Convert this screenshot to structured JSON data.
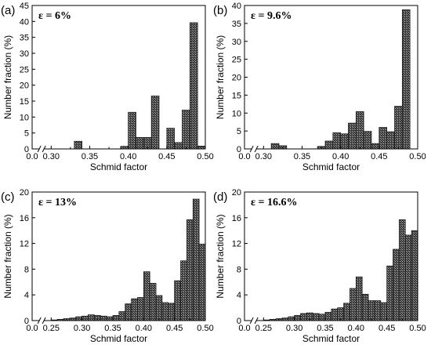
{
  "chart_data": [
    {
      "type": "bar",
      "panel_label": "(a)",
      "annotation": "ε = 6%",
      "xlabel": "Schmid factor",
      "ylabel": "Number fraction (%)",
      "xlim": [
        0.0,
        0.5
      ],
      "ylim": [
        0,
        45
      ],
      "axis_break": "0.0–0.30",
      "xticks": [
        "0.0",
        "0.30",
        "0.35",
        "0.40",
        "0.45",
        "0.50"
      ],
      "yticks": [
        "0",
        "5",
        "10",
        "15",
        "20",
        "25",
        "30",
        "35",
        "40",
        "45"
      ],
      "bin_width": 0.01,
      "bins": [
        {
          "x": 0.335,
          "y": 2.4
        },
        {
          "x": 0.395,
          "y": 0.8
        },
        {
          "x": 0.405,
          "y": 11.5
        },
        {
          "x": 0.415,
          "y": 3.6
        },
        {
          "x": 0.425,
          "y": 3.6
        },
        {
          "x": 0.435,
          "y": 16.6
        },
        {
          "x": 0.455,
          "y": 6.5
        },
        {
          "x": 0.465,
          "y": 2.0
        },
        {
          "x": 0.475,
          "y": 12.2
        },
        {
          "x": 0.485,
          "y": 39.6
        },
        {
          "x": 0.495,
          "y": 0.9
        }
      ]
    },
    {
      "type": "bar",
      "panel_label": "(b)",
      "annotation": "ε = 9.6%",
      "xlabel": "Schmid factor",
      "ylabel": "Number fraction (%)",
      "xlim": [
        0.0,
        0.5
      ],
      "ylim": [
        0,
        40
      ],
      "axis_break": "0.0–0.30",
      "xticks": [
        "0.0",
        "0.30",
        "0.35",
        "0.40",
        "0.45",
        "0.50"
      ],
      "yticks": [
        "0",
        "5",
        "10",
        "15",
        "20",
        "25",
        "30",
        "35",
        "40"
      ],
      "bin_width": 0.01,
      "bins": [
        {
          "x": 0.315,
          "y": 1.5
        },
        {
          "x": 0.325,
          "y": 0.9
        },
        {
          "x": 0.375,
          "y": 0.7
        },
        {
          "x": 0.385,
          "y": 2.2
        },
        {
          "x": 0.395,
          "y": 4.5
        },
        {
          "x": 0.405,
          "y": 4.2
        },
        {
          "x": 0.415,
          "y": 7.2
        },
        {
          "x": 0.425,
          "y": 10.4
        },
        {
          "x": 0.435,
          "y": 4.9
        },
        {
          "x": 0.445,
          "y": 1.5
        },
        {
          "x": 0.455,
          "y": 6.0
        },
        {
          "x": 0.465,
          "y": 4.8
        },
        {
          "x": 0.475,
          "y": 11.9
        },
        {
          "x": 0.485,
          "y": 38.8
        }
      ]
    },
    {
      "type": "bar",
      "panel_label": "(c)",
      "annotation": "ε = 13%",
      "xlabel": "Schmid factor",
      "ylabel": "Number fraction (%)",
      "xlim": [
        0.0,
        0.5
      ],
      "ylim": [
        0,
        20
      ],
      "axis_break": "0.0–0.25",
      "xticks": [
        "0.0",
        "0.25",
        "0.30",
        "0.35",
        "0.40",
        "0.45",
        "0.50"
      ],
      "yticks": [
        "0",
        "4",
        "8",
        "12",
        "16",
        "20"
      ],
      "bin_width": 0.01,
      "bins": [
        {
          "x": 0.255,
          "y": 0.1
        },
        {
          "x": 0.265,
          "y": 0.2
        },
        {
          "x": 0.275,
          "y": 0.3
        },
        {
          "x": 0.285,
          "y": 0.4
        },
        {
          "x": 0.295,
          "y": 0.6
        },
        {
          "x": 0.305,
          "y": 0.7
        },
        {
          "x": 0.315,
          "y": 0.9
        },
        {
          "x": 0.325,
          "y": 0.8
        },
        {
          "x": 0.335,
          "y": 0.7
        },
        {
          "x": 0.345,
          "y": 0.6
        },
        {
          "x": 0.355,
          "y": 0.8
        },
        {
          "x": 0.365,
          "y": 1.4
        },
        {
          "x": 0.375,
          "y": 2.6
        },
        {
          "x": 0.385,
          "y": 3.4
        },
        {
          "x": 0.395,
          "y": 3.6
        },
        {
          "x": 0.405,
          "y": 7.6
        },
        {
          "x": 0.415,
          "y": 5.8
        },
        {
          "x": 0.425,
          "y": 3.9
        },
        {
          "x": 0.435,
          "y": 2.8
        },
        {
          "x": 0.445,
          "y": 2.7
        },
        {
          "x": 0.455,
          "y": 6.2
        },
        {
          "x": 0.465,
          "y": 9.3
        },
        {
          "x": 0.475,
          "y": 15.7
        },
        {
          "x": 0.485,
          "y": 18.9
        },
        {
          "x": 0.495,
          "y": 11.9
        }
      ]
    },
    {
      "type": "bar",
      "panel_label": "(d)",
      "annotation": "ε = 16.6%",
      "xlabel": "Schmid factor",
      "ylabel": "Number fraction (%)",
      "xlim": [
        0.0,
        0.5
      ],
      "ylim": [
        0,
        20
      ],
      "axis_break": "0.0–0.25",
      "xticks": [
        "0.0",
        "0.25",
        "0.30",
        "0.35",
        "0.40",
        "0.45",
        "0.50"
      ],
      "yticks": [
        "0",
        "4",
        "8",
        "12",
        "16",
        "20"
      ],
      "bin_width": 0.01,
      "bins": [
        {
          "x": 0.255,
          "y": 0.1
        },
        {
          "x": 0.265,
          "y": 0.2
        },
        {
          "x": 0.275,
          "y": 0.3
        },
        {
          "x": 0.285,
          "y": 0.4
        },
        {
          "x": 0.295,
          "y": 0.6
        },
        {
          "x": 0.305,
          "y": 0.8
        },
        {
          "x": 0.315,
          "y": 1.1
        },
        {
          "x": 0.325,
          "y": 1.2
        },
        {
          "x": 0.335,
          "y": 1.1
        },
        {
          "x": 0.345,
          "y": 1.0
        },
        {
          "x": 0.355,
          "y": 1.3
        },
        {
          "x": 0.365,
          "y": 1.8
        },
        {
          "x": 0.375,
          "y": 2.0
        },
        {
          "x": 0.385,
          "y": 2.7
        },
        {
          "x": 0.395,
          "y": 5.0
        },
        {
          "x": 0.405,
          "y": 6.8
        },
        {
          "x": 0.415,
          "y": 4.1
        },
        {
          "x": 0.425,
          "y": 3.1
        },
        {
          "x": 0.435,
          "y": 3.1
        },
        {
          "x": 0.445,
          "y": 2.8
        },
        {
          "x": 0.455,
          "y": 8.5
        },
        {
          "x": 0.465,
          "y": 11.1
        },
        {
          "x": 0.475,
          "y": 15.7
        },
        {
          "x": 0.485,
          "y": 13.3
        },
        {
          "x": 0.495,
          "y": 14.0
        }
      ]
    }
  ]
}
